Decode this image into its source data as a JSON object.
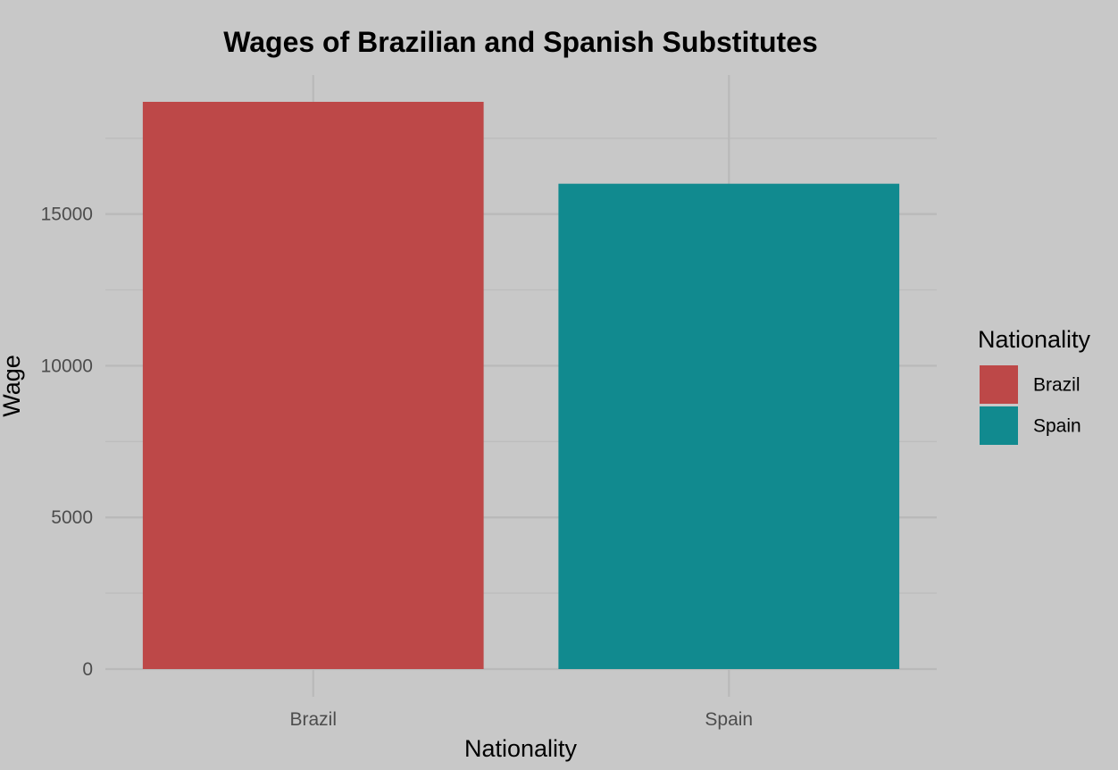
{
  "chart_data": {
    "type": "bar",
    "title": "Wages of Brazilian and Spanish Substitutes",
    "xlabel": "Nationality",
    "ylabel": "Wage",
    "categories": [
      "Brazil",
      "Spain"
    ],
    "values": [
      18700,
      16000
    ],
    "colors": [
      "#bd4848",
      "#118a8f"
    ],
    "ylim": [
      0,
      18700
    ],
    "yticks": [
      0,
      5000,
      10000,
      15000
    ],
    "ytick_labels": [
      "0",
      "5000",
      "10000",
      "15000"
    ],
    "y_minor_ticks": [
      2500,
      7500,
      12500,
      17500
    ],
    "grid": true,
    "background": "#c8c8c8",
    "legend": {
      "title": "Nationality",
      "position": "right",
      "entries": [
        "Brazil",
        "Spain"
      ]
    }
  }
}
